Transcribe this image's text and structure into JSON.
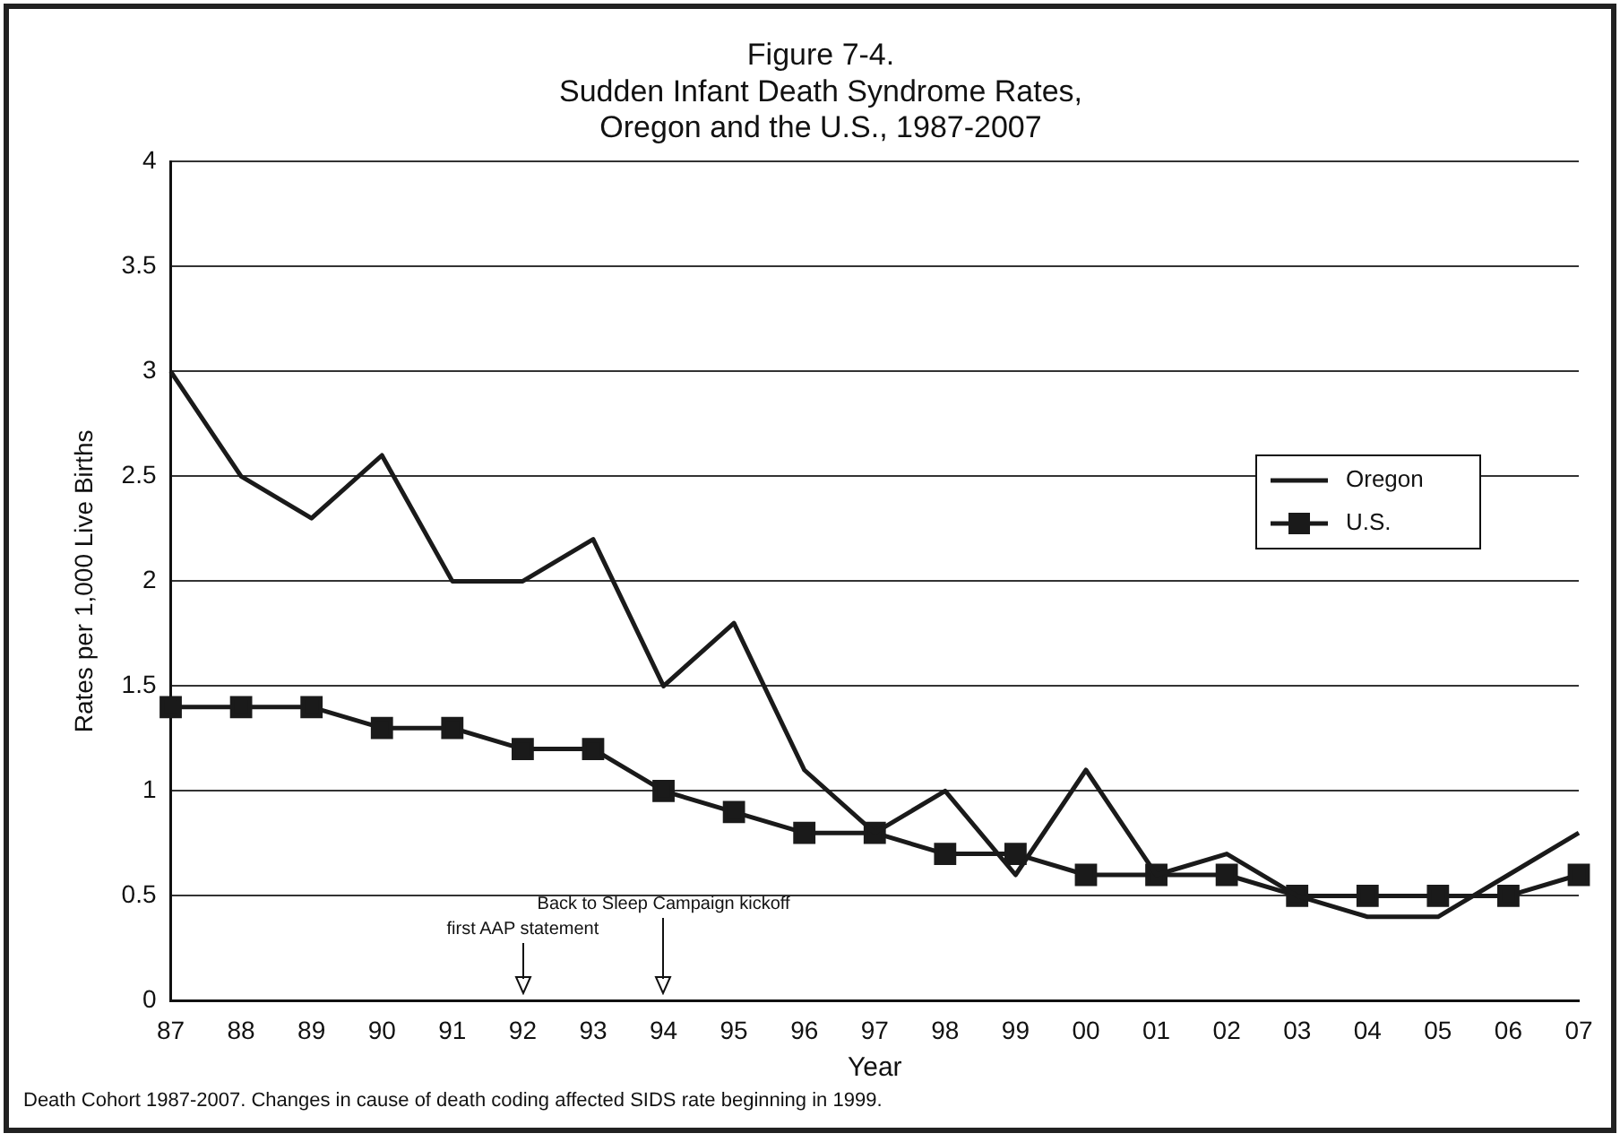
{
  "chart_data": {
    "type": "line",
    "title": "Figure 7-4.\nSudden Infant Death Syndrome Rates,\nOregon and the U.S., 1987-2007",
    "xlabel": "Year",
    "ylabel": "Rates per 1,000 Live Births",
    "categories": [
      "87",
      "88",
      "89",
      "90",
      "91",
      "92",
      "93",
      "94",
      "95",
      "96",
      "97",
      "98",
      "99",
      "00",
      "01",
      "02",
      "03",
      "04",
      "05",
      "06",
      "07"
    ],
    "series": [
      {
        "name": "Oregon",
        "color": "#1a1a1a",
        "marker": "none",
        "values": [
          3.0,
          2.5,
          2.3,
          2.6,
          2.0,
          2.0,
          2.2,
          1.5,
          1.8,
          1.1,
          0.8,
          1.0,
          0.6,
          1.1,
          0.6,
          0.7,
          0.5,
          0.4,
          0.4,
          0.6,
          0.8
        ]
      },
      {
        "name": "U.S.",
        "color": "#1a1a1a",
        "marker": "square",
        "values": [
          1.4,
          1.4,
          1.4,
          1.3,
          1.3,
          1.2,
          1.2,
          1.0,
          0.9,
          0.8,
          0.8,
          0.7,
          0.7,
          0.6,
          0.6,
          0.6,
          0.5,
          0.5,
          0.5,
          0.5,
          0.6
        ]
      }
    ],
    "ylim": [
      0,
      4
    ],
    "yticks": [
      0,
      0.5,
      1,
      1.5,
      2,
      2.5,
      3,
      3.5,
      4
    ],
    "grid": "y",
    "legend": "right",
    "annotations": [
      {
        "text": "first AAP statement",
        "x": "92"
      },
      {
        "text": "Back to Sleep Campaign kickoff",
        "x": "94"
      },
      "Death Cohort 1987-2007.  Changes in cause of death coding affected SIDS rate beginning in 1999."
    ]
  }
}
